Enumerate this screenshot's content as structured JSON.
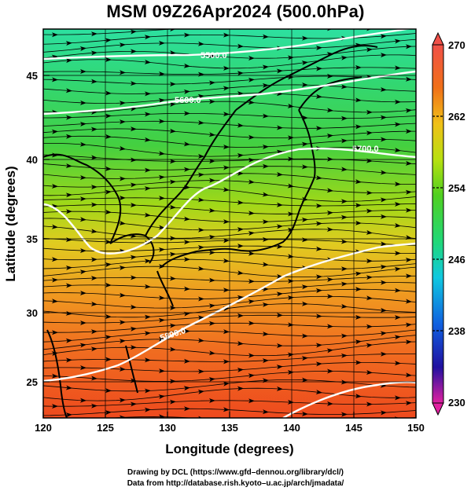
{
  "title": "MSM 09Z26Apr2024 (500.0hPa)",
  "x_axis": {
    "label": "Longitude (degrees)",
    "ticks": [
      "120",
      "125",
      "130",
      "135",
      "140",
      "145",
      "150"
    ],
    "range": [
      120,
      150
    ]
  },
  "y_axis": {
    "label": "Latitude  (degrees)",
    "ticks": [
      "25",
      "30",
      "35",
      "40",
      "45"
    ],
    "range": [
      22.4,
      47.6
    ]
  },
  "colorbar": {
    "ticks": [
      "270",
      "262",
      "254",
      "246",
      "238",
      "230"
    ],
    "range": [
      230,
      270
    ],
    "colors": [
      "#e81ea0",
      "#3020c8",
      "#10a0e8",
      "#20d880",
      "#40c820",
      "#a0e010",
      "#e0d810",
      "#f0a010",
      "#e04010",
      "#f06050"
    ]
  },
  "contours": [
    {
      "value": "5500.0"
    },
    {
      "value": "5600.0"
    },
    {
      "value": "5700.0"
    },
    {
      "value": "5800.0"
    }
  ],
  "credits": {
    "line1": "Drawing by DCL (https://www.gfd–dennou.org/library/dcl/)",
    "line2": "Data from http://database.rish.kyoto–u.ac.jp/arch/jmadata/"
  }
}
